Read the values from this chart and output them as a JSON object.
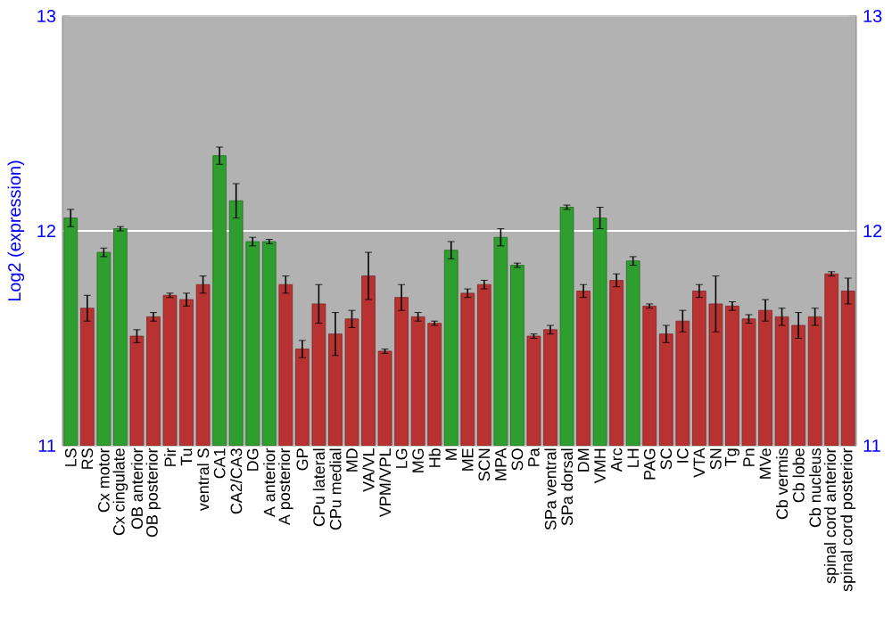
{
  "chart_data": {
    "type": "bar",
    "ylabel": "Log2 (expression)",
    "categories": [
      "LS",
      "RS",
      "Cx motor",
      "Cx cingulate",
      "OB anterior",
      "OB posterior",
      "Pir",
      "Tu",
      "ventral S",
      "CA1",
      "CA2/CA3",
      "DG",
      "A anterior",
      "A posterior",
      "GP",
      "CPu lateral",
      "CPu medial",
      "MD",
      "VA/VL",
      "VPM/VPL",
      "LG",
      "MG",
      "Hb",
      "M",
      "ME",
      "SCN",
      "MPA",
      "SO",
      "Pa",
      "SPa ventral",
      "SPa dorsal",
      "DM",
      "VMH",
      "Arc",
      "LH",
      "PAG",
      "SC",
      "IC",
      "VTA",
      "SN",
      "Tg",
      "Pn",
      "MVe",
      "Cb vermis",
      "Cb lobe",
      "Cb nucleus",
      "spinal cord anterior",
      "spinal cord posterior"
    ],
    "values": [
      12.06,
      11.64,
      11.9,
      12.01,
      11.51,
      11.6,
      11.7,
      11.68,
      11.75,
      12.35,
      12.14,
      11.95,
      11.95,
      11.75,
      11.45,
      11.66,
      11.52,
      11.59,
      11.79,
      11.44,
      11.69,
      11.6,
      11.57,
      11.91,
      11.71,
      11.75,
      11.97,
      11.84,
      11.51,
      11.54,
      12.11,
      11.72,
      12.06,
      11.77,
      11.86,
      11.65,
      11.52,
      11.58,
      11.72,
      11.66,
      11.65,
      11.59,
      11.63,
      11.6,
      11.56,
      11.6,
      11.8,
      11.72
    ],
    "errors": [
      0.04,
      0.06,
      0.02,
      0.01,
      0.03,
      0.02,
      0.01,
      0.03,
      0.04,
      0.04,
      0.08,
      0.02,
      0.01,
      0.04,
      0.04,
      0.09,
      0.1,
      0.04,
      0.11,
      0.01,
      0.06,
      0.02,
      0.01,
      0.04,
      0.02,
      0.02,
      0.04,
      0.01,
      0.01,
      0.02,
      0.01,
      0.03,
      0.05,
      0.03,
      0.02,
      0.01,
      0.04,
      0.05,
      0.03,
      0.13,
      0.02,
      0.02,
      0.05,
      0.04,
      0.06,
      0.04,
      0.01,
      0.06
    ],
    "colors": [
      "#2e9e2e",
      "#b83232",
      "#2e9e2e",
      "#2e9e2e",
      "#b83232",
      "#b83232",
      "#b83232",
      "#b83232",
      "#b83232",
      "#2e9e2e",
      "#2e9e2e",
      "#2e9e2e",
      "#2e9e2e",
      "#b83232",
      "#b83232",
      "#b83232",
      "#b83232",
      "#b83232",
      "#b83232",
      "#b83232",
      "#b83232",
      "#b83232",
      "#b83232",
      "#2e9e2e",
      "#b83232",
      "#b83232",
      "#2e9e2e",
      "#2e9e2e",
      "#b83232",
      "#b83232",
      "#2e9e2e",
      "#b83232",
      "#2e9e2e",
      "#b83232",
      "#2e9e2e",
      "#b83232",
      "#b83232",
      "#b83232",
      "#b83232",
      "#b83232",
      "#b83232",
      "#b83232",
      "#b83232",
      "#b83232",
      "#b83232",
      "#b83232",
      "#b83232",
      "#b83232"
    ],
    "ylim": [
      11,
      13
    ],
    "yticks": [
      11,
      12,
      13
    ],
    "y2lim": [
      11,
      13
    ],
    "y2ticks": [
      11,
      12,
      13
    ],
    "grid": "y"
  }
}
